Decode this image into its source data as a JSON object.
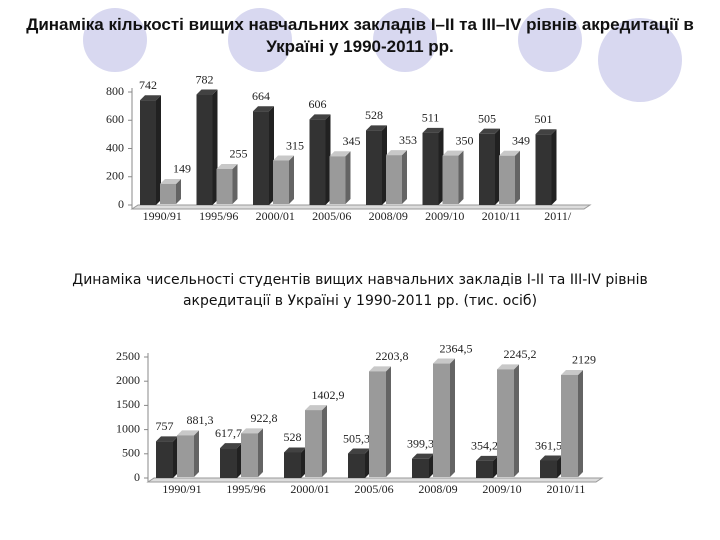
{
  "chart_data": [
    {
      "type": "bar",
      "title": "Динаміка кількості вищих навчальних закладів І–ІІ та ІІІ–ІV рівнів акредитації в Україні у 1990-2011 рр.",
      "categories": [
        "1990/91",
        "1995/96",
        "2000/01",
        "2005/06",
        "2008/09",
        "2009/10",
        "2010/11",
        "2011/"
      ],
      "series": [
        {
          "color": "#333333",
          "values": [
            742,
            782,
            664,
            606,
            528,
            511,
            505,
            501
          ]
        },
        {
          "color": "#9a9a9a",
          "values": [
            149,
            255,
            315,
            345,
            353,
            350,
            349,
            null
          ]
        }
      ],
      "ylim": [
        0,
        800
      ],
      "yticks": [
        0,
        200,
        400,
        600,
        800
      ]
    },
    {
      "type": "bar",
      "title": "Динаміка чисельності студентів вищих навчальних закладів І-ІІ та ІІІ-ІV рівнів акредитації в Україні у 1990-2011 рр. (тис. осіб)",
      "categories": [
        "1990/91",
        "1995/96",
        "2000/01",
        "2005/06",
        "2008/09",
        "2009/10",
        "2010/11"
      ],
      "series": [
        {
          "color": "#333333",
          "values": [
            757,
            617.7,
            528,
            505.3,
            399.3,
            354.2,
            361.5
          ],
          "value_labels": [
            "757",
            "617,7",
            "528",
            "505,3",
            "399,3",
            "354,2",
            "361,5"
          ]
        },
        {
          "color": "#9a9a9a",
          "values": [
            881.3,
            922.8,
            1402.9,
            2203.8,
            2364.5,
            2245.2,
            2129
          ],
          "value_labels": [
            "881,3",
            "922,8",
            "1402,9",
            "2203,8",
            "2364,5",
            "2245,2",
            "2129"
          ]
        }
      ],
      "ylim": [
        0,
        2500
      ],
      "yticks": [
        0,
        500,
        1000,
        1500,
        2000,
        2500
      ]
    }
  ]
}
